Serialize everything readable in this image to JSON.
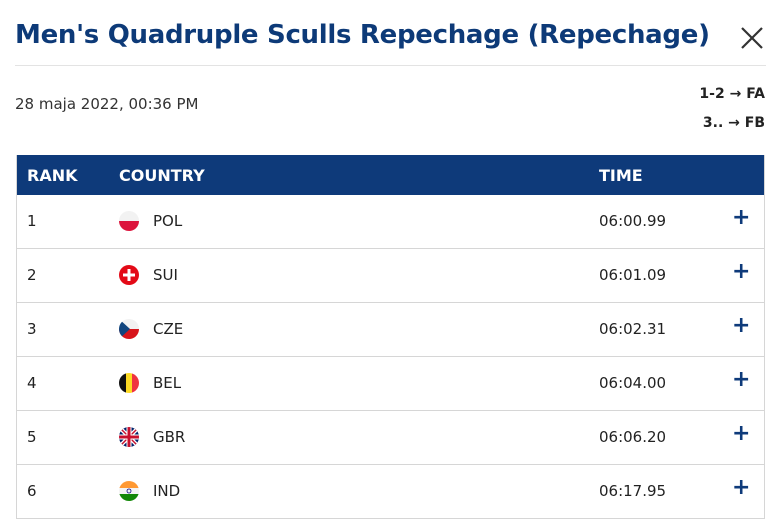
{
  "header": {
    "title": "Men's Quadruple Sculls Repechage (Repechage)",
    "close_icon": "close-icon"
  },
  "meta": {
    "date": "28 maja 2022, 00:36 PM",
    "qualification": [
      "1-2 → FA",
      "3.. → FB"
    ]
  },
  "table": {
    "columns": [
      "RANK",
      "COUNTRY",
      "TIME"
    ],
    "rows": [
      {
        "rank": "1",
        "country": "POL",
        "time": "06:00.99",
        "flag": "flag-poland"
      },
      {
        "rank": "2",
        "country": "SUI",
        "time": "06:01.09",
        "flag": "flag-switzerland"
      },
      {
        "rank": "3",
        "country": "CZE",
        "time": "06:02.31",
        "flag": "flag-czechia"
      },
      {
        "rank": "4",
        "country": "BEL",
        "time": "06:04.00",
        "flag": "flag-belgium"
      },
      {
        "rank": "5",
        "country": "GBR",
        "time": "06:06.20",
        "flag": "flag-great-britain"
      },
      {
        "rank": "6",
        "country": "IND",
        "time": "06:17.95",
        "flag": "flag-india"
      }
    ],
    "expand_label": "+"
  },
  "colors": {
    "brand": "#0d3a78",
    "header_bg": "#0e3a7a",
    "divider": "#d6d6d6"
  }
}
